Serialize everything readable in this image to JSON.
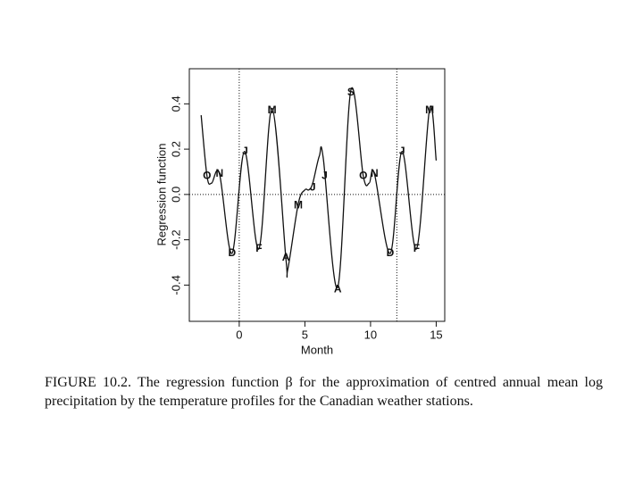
{
  "chart_data": {
    "type": "line",
    "x_label": "Month",
    "y_label": "Regression function",
    "x": [
      -2.9,
      -2.45,
      -2.1,
      -1.5,
      -0.55,
      0.4,
      1.5,
      2.5,
      3.55,
      3.7,
      4.5,
      5.0,
      5.3,
      5.6,
      6.1,
      6.4,
      7.5,
      8.5,
      9.45,
      9.9,
      10.3,
      11.5,
      12.4,
      13.5,
      14.5,
      15.0
    ],
    "series": [
      {
        "color": "#111111",
        "values": [
          0.35,
          0.08,
          0.05,
          0.09,
          -0.26,
          0.19,
          -0.24,
          0.38,
          -0.28,
          -0.33,
          -0.04,
          0.02,
          0.02,
          0.05,
          0.17,
          0.16,
          -0.41,
          0.46,
          0.08,
          0.05,
          0.09,
          -0.26,
          0.19,
          -0.24,
          0.38,
          0.15
        ]
      }
    ],
    "annotations": [
      {
        "text": "O",
        "x": -2.45,
        "y": 0.08
      },
      {
        "text": "N",
        "x": -1.5,
        "y": 0.09
      },
      {
        "text": "D",
        "x": -0.55,
        "y": -0.26
      },
      {
        "text": "J",
        "x": 0.45,
        "y": 0.19
      },
      {
        "text": "F",
        "x": 1.5,
        "y": -0.24
      },
      {
        "text": "M",
        "x": 2.5,
        "y": 0.37
      },
      {
        "text": "A",
        "x": 3.55,
        "y": -0.28
      },
      {
        "text": "M",
        "x": 4.5,
        "y": -0.05
      },
      {
        "text": "J",
        "x": 5.6,
        "y": 0.03
      },
      {
        "text": "J",
        "x": 6.5,
        "y": 0.08
      },
      {
        "text": "A",
        "x": 7.5,
        "y": -0.42
      },
      {
        "text": "S",
        "x": 8.5,
        "y": 0.45
      },
      {
        "text": "O",
        "x": 9.45,
        "y": 0.08
      },
      {
        "text": "N",
        "x": 10.3,
        "y": 0.09
      },
      {
        "text": "D",
        "x": 11.5,
        "y": -0.26
      },
      {
        "text": "J",
        "x": 12.4,
        "y": 0.19
      },
      {
        "text": "F",
        "x": 13.5,
        "y": -0.24
      },
      {
        "text": "M",
        "x": 14.5,
        "y": 0.37
      }
    ],
    "vlines": [
      0,
      12
    ],
    "hline": 0,
    "xlim": [
      -3.8,
      15.65
    ],
    "ylim": [
      -0.56,
      0.555
    ],
    "xticks": [
      0,
      5,
      10,
      15
    ],
    "yticks": [
      -0.4,
      -0.2,
      {
        "value": 0,
        "label": "0.0"
      },
      0.2,
      0.4
    ]
  },
  "caption": "FIGURE 10.2. The regression function β for the approximation of centred annual mean log precipitation by the temperature profiles for the Canadian weather stations."
}
